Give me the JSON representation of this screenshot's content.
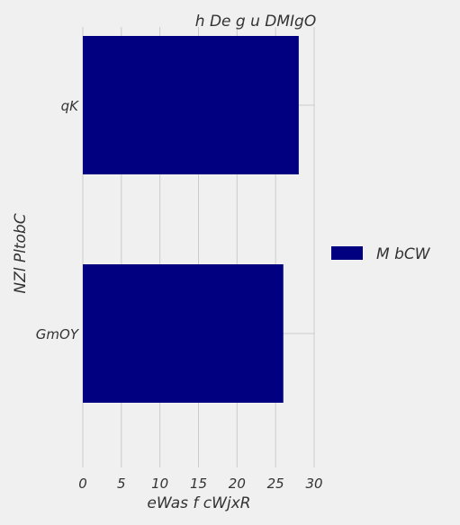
{
  "chart_data": {
    "type": "bar",
    "orientation": "horizontal",
    "title": "h De g u DMIgO",
    "xlabel": "eWas f cWjxR",
    "ylabel": "NZl PltobC",
    "categories": [
      "qK",
      "GmOY"
    ],
    "series": [
      {
        "name": "M bCW",
        "values": [
          28.0,
          26.0
        ],
        "color": "#000080"
      }
    ],
    "xlim": [
      0,
      30
    ],
    "xticks": [
      0,
      5,
      10,
      15,
      20,
      25,
      30
    ],
    "grid": true,
    "legend_position": "right"
  },
  "colors": {
    "background": "#f0f0f0",
    "grid": "#cbcbcb",
    "bar": "#000080",
    "text": "#333333"
  }
}
